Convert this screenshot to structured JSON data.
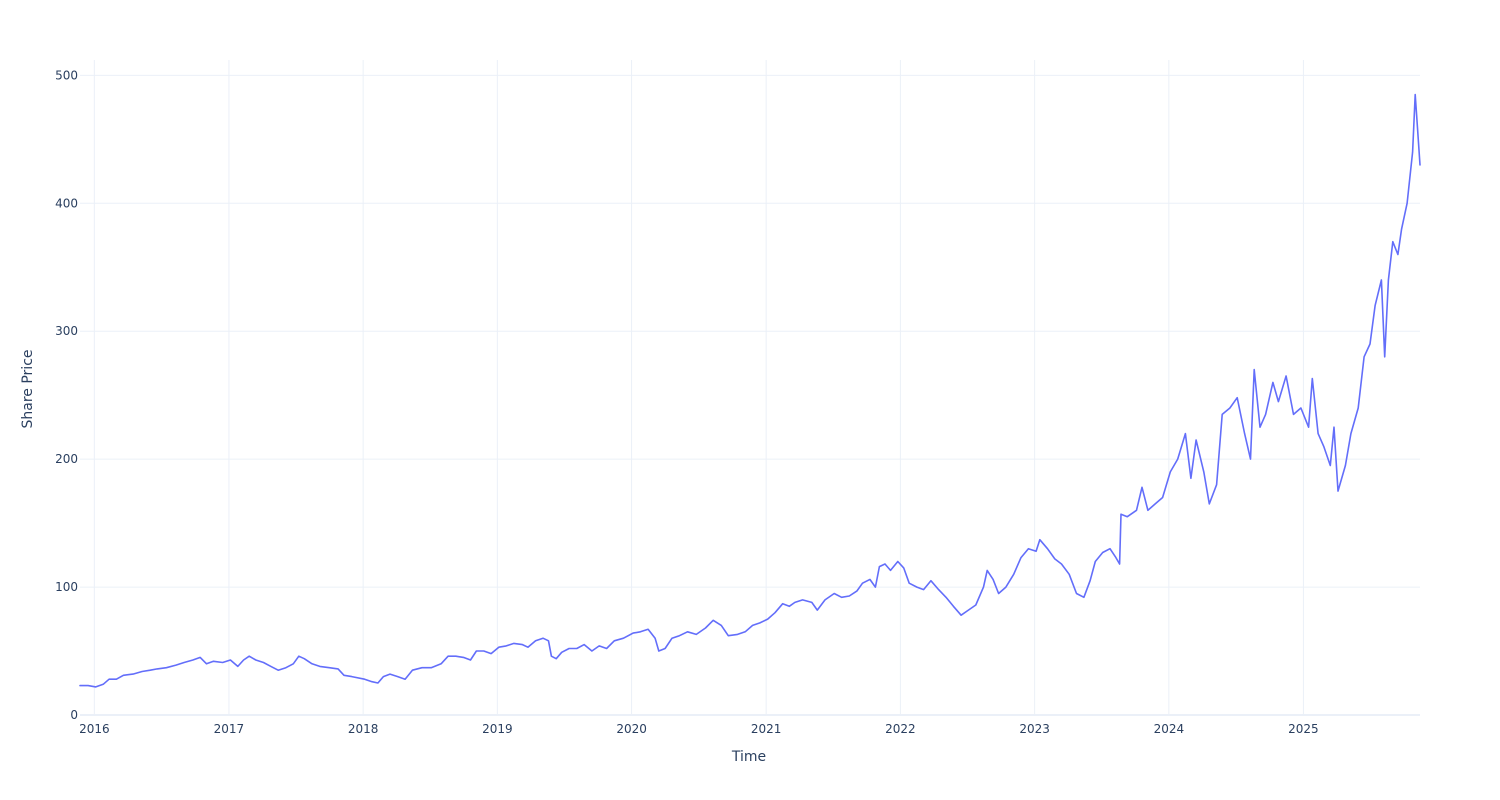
{
  "chart_data": {
    "type": "line",
    "xlabel": "Time",
    "ylabel": "Share Price",
    "xlim": [
      "2015-11-23",
      "2025-11-14"
    ],
    "ylim": [
      0,
      512
    ],
    "x_ticks": [
      "2016",
      "2017",
      "2018",
      "2019",
      "2020",
      "2021",
      "2022",
      "2023",
      "2024",
      "2025"
    ],
    "y_ticks": [
      0,
      100,
      200,
      300,
      400,
      500
    ],
    "grid": true,
    "legend": "none",
    "series": [
      {
        "color": "#636efa",
        "points": [
          [
            "2015-11-23",
            23
          ],
          [
            "2015-12-15",
            23
          ],
          [
            "2016-01-05",
            22
          ],
          [
            "2016-01-25",
            24
          ],
          [
            "2016-02-10",
            28
          ],
          [
            "2016-03-01",
            28
          ],
          [
            "2016-03-20",
            31
          ],
          [
            "2016-04-15",
            32
          ],
          [
            "2016-05-10",
            34
          ],
          [
            "2016-06-01",
            35
          ],
          [
            "2016-06-20",
            36
          ],
          [
            "2016-07-15",
            37
          ],
          [
            "2016-08-10",
            39
          ],
          [
            "2016-09-01",
            41
          ],
          [
            "2016-09-25",
            43
          ],
          [
            "2016-10-15",
            45
          ],
          [
            "2016-11-01",
            40
          ],
          [
            "2016-11-20",
            42
          ],
          [
            "2016-12-15",
            41
          ],
          [
            "2017-01-05",
            43
          ],
          [
            "2017-01-25",
            38
          ],
          [
            "2017-02-10",
            43
          ],
          [
            "2017-02-25",
            46
          ],
          [
            "2017-03-15",
            43
          ],
          [
            "2017-04-05",
            41
          ],
          [
            "2017-04-25",
            38
          ],
          [
            "2017-05-15",
            35
          ],
          [
            "2017-06-05",
            37
          ],
          [
            "2017-06-25",
            40
          ],
          [
            "2017-07-10",
            46
          ],
          [
            "2017-07-25",
            44
          ],
          [
            "2017-08-15",
            40
          ],
          [
            "2017-09-05",
            38
          ],
          [
            "2017-10-01",
            37
          ],
          [
            "2017-10-25",
            36
          ],
          [
            "2017-11-10",
            31
          ],
          [
            "2017-12-01",
            30
          ],
          [
            "2018-01-05",
            28
          ],
          [
            "2018-01-25",
            26
          ],
          [
            "2018-02-10",
            25
          ],
          [
            "2018-02-25",
            30
          ],
          [
            "2018-03-15",
            32
          ],
          [
            "2018-04-05",
            30
          ],
          [
            "2018-04-25",
            28
          ],
          [
            "2018-05-15",
            35
          ],
          [
            "2018-06-10",
            37
          ],
          [
            "2018-07-05",
            37
          ],
          [
            "2018-08-01",
            40
          ],
          [
            "2018-08-20",
            46
          ],
          [
            "2018-09-10",
            46
          ],
          [
            "2018-10-01",
            45
          ],
          [
            "2018-10-20",
            43
          ],
          [
            "2018-11-05",
            50
          ],
          [
            "2018-11-25",
            50
          ],
          [
            "2018-12-15",
            48
          ],
          [
            "2019-01-05",
            53
          ],
          [
            "2019-01-25",
            54
          ],
          [
            "2019-02-15",
            56
          ],
          [
            "2019-03-10",
            55
          ],
          [
            "2019-03-25",
            53
          ],
          [
            "2019-04-15",
            58
          ],
          [
            "2019-05-05",
            60
          ],
          [
            "2019-05-20",
            58
          ],
          [
            "2019-05-28",
            46
          ],
          [
            "2019-06-10",
            44
          ],
          [
            "2019-06-25",
            49
          ],
          [
            "2019-07-15",
            52
          ],
          [
            "2019-08-05",
            52
          ],
          [
            "2019-08-25",
            55
          ],
          [
            "2019-09-15",
            50
          ],
          [
            "2019-10-05",
            54
          ],
          [
            "2019-10-25",
            52
          ],
          [
            "2019-11-15",
            58
          ],
          [
            "2019-12-10",
            60
          ],
          [
            "2020-01-05",
            64
          ],
          [
            "2020-01-25",
            65
          ],
          [
            "2020-02-15",
            67
          ],
          [
            "2020-03-05",
            60
          ],
          [
            "2020-03-15",
            50
          ],
          [
            "2020-04-01",
            52
          ],
          [
            "2020-04-20",
            60
          ],
          [
            "2020-05-10",
            62
          ],
          [
            "2020-06-01",
            65
          ],
          [
            "2020-06-25",
            63
          ],
          [
            "2020-07-20",
            68
          ],
          [
            "2020-08-10",
            74
          ],
          [
            "2020-09-01",
            70
          ],
          [
            "2020-09-20",
            62
          ],
          [
            "2020-10-15",
            63
          ],
          [
            "2020-11-05",
            65
          ],
          [
            "2020-11-25",
            70
          ],
          [
            "2020-12-15",
            72
          ],
          [
            "2021-01-05",
            75
          ],
          [
            "2021-01-25",
            80
          ],
          [
            "2021-02-15",
            87
          ],
          [
            "2021-03-05",
            85
          ],
          [
            "2021-03-20",
            88
          ],
          [
            "2021-04-10",
            90
          ],
          [
            "2021-05-05",
            88
          ],
          [
            "2021-05-20",
            82
          ],
          [
            "2021-06-10",
            90
          ],
          [
            "2021-07-05",
            95
          ],
          [
            "2021-07-25",
            92
          ],
          [
            "2021-08-15",
            93
          ],
          [
            "2021-09-05",
            97
          ],
          [
            "2021-09-20",
            103
          ],
          [
            "2021-10-10",
            106
          ],
          [
            "2021-10-25",
            100
          ],
          [
            "2021-11-05",
            116
          ],
          [
            "2021-11-20",
            118
          ],
          [
            "2021-12-05",
            113
          ],
          [
            "2021-12-25",
            120
          ],
          [
            "2022-01-10",
            115
          ],
          [
            "2022-01-25",
            103
          ],
          [
            "2022-02-15",
            100
          ],
          [
            "2022-03-05",
            98
          ],
          [
            "2022-03-25",
            105
          ],
          [
            "2022-04-15",
            98
          ],
          [
            "2022-05-05",
            92
          ],
          [
            "2022-05-25",
            85
          ],
          [
            "2022-06-15",
            78
          ],
          [
            "2022-07-05",
            82
          ],
          [
            "2022-07-25",
            86
          ],
          [
            "2022-08-15",
            100
          ],
          [
            "2022-08-25",
            113
          ],
          [
            "2022-09-10",
            106
          ],
          [
            "2022-09-25",
            95
          ],
          [
            "2022-10-15",
            100
          ],
          [
            "2022-11-05",
            110
          ],
          [
            "2022-11-25",
            123
          ],
          [
            "2022-12-15",
            130
          ],
          [
            "2023-01-05",
            128
          ],
          [
            "2023-01-15",
            137
          ],
          [
            "2023-02-05",
            130
          ],
          [
            "2023-02-25",
            122
          ],
          [
            "2023-03-15",
            118
          ],
          [
            "2023-04-05",
            110
          ],
          [
            "2023-04-25",
            95
          ],
          [
            "2023-05-15",
            92
          ],
          [
            "2023-06-01",
            105
          ],
          [
            "2023-06-15",
            120
          ],
          [
            "2023-07-05",
            127
          ],
          [
            "2023-07-25",
            130
          ],
          [
            "2023-08-10",
            123
          ],
          [
            "2023-08-20",
            118
          ],
          [
            "2023-08-24",
            157
          ],
          [
            "2023-09-10",
            155
          ],
          [
            "2023-10-05",
            160
          ],
          [
            "2023-10-20",
            178
          ],
          [
            "2023-11-05",
            160
          ],
          [
            "2023-11-25",
            165
          ],
          [
            "2023-12-15",
            170
          ],
          [
            "2024-01-05",
            190
          ],
          [
            "2024-01-25",
            200
          ],
          [
            "2024-02-15",
            220
          ],
          [
            "2024-03-01",
            185
          ],
          [
            "2024-03-15",
            215
          ],
          [
            "2024-04-05",
            190
          ],
          [
            "2024-04-20",
            165
          ],
          [
            "2024-05-10",
            180
          ],
          [
            "2024-05-25",
            235
          ],
          [
            "2024-06-15",
            240
          ],
          [
            "2024-07-05",
            248
          ],
          [
            "2024-07-25",
            220
          ],
          [
            "2024-08-10",
            200
          ],
          [
            "2024-08-20",
            270
          ],
          [
            "2024-09-05",
            225
          ],
          [
            "2024-09-20",
            235
          ],
          [
            "2024-10-10",
            260
          ],
          [
            "2024-10-25",
            245
          ],
          [
            "2024-11-15",
            265
          ],
          [
            "2024-12-05",
            235
          ],
          [
            "2024-12-25",
            240
          ],
          [
            "2025-01-15",
            225
          ],
          [
            "2025-01-25",
            263
          ],
          [
            "2025-02-10",
            220
          ],
          [
            "2025-02-25",
            210
          ],
          [
            "2025-03-15",
            195
          ],
          [
            "2025-03-25",
            225
          ],
          [
            "2025-04-05",
            175
          ],
          [
            "2025-04-25",
            195
          ],
          [
            "2025-05-10",
            220
          ],
          [
            "2025-05-30",
            240
          ],
          [
            "2025-06-15",
            280
          ],
          [
            "2025-07-01",
            290
          ],
          [
            "2025-07-15",
            320
          ],
          [
            "2025-08-01",
            340
          ],
          [
            "2025-08-10",
            280
          ],
          [
            "2025-08-20",
            340
          ],
          [
            "2025-09-01",
            370
          ],
          [
            "2025-09-15",
            360
          ],
          [
            "2025-09-25",
            380
          ],
          [
            "2025-10-10",
            400
          ],
          [
            "2025-10-25",
            440
          ],
          [
            "2025-11-01",
            485
          ],
          [
            "2025-11-07",
            460
          ],
          [
            "2025-11-14",
            430
          ]
        ]
      }
    ]
  }
}
